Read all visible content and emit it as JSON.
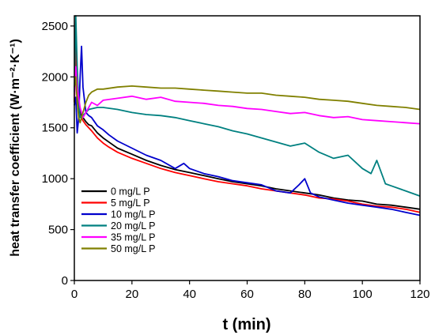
{
  "chart_data": {
    "type": "line",
    "xlabel": "t (min)",
    "ylabel": "heat transfer coefficient (W·m⁻²·K⁻¹)",
    "xlim": [
      0,
      120
    ],
    "ylim": [
      0,
      2600
    ],
    "xticks": [
      0,
      20,
      40,
      60,
      80,
      100,
      120
    ],
    "yticks": [
      0,
      500,
      1000,
      1500,
      2000,
      2500
    ],
    "grid": false,
    "legend_position": "lower-left",
    "series": [
      {
        "name": "0 mg/L P",
        "color": "#000000",
        "x": [
          0,
          0.5,
          1,
          1.5,
          2,
          3,
          4,
          5,
          6,
          8,
          10,
          12,
          15,
          20,
          25,
          30,
          35,
          40,
          45,
          50,
          55,
          60,
          65,
          70,
          75,
          80,
          85,
          90,
          95,
          100,
          105,
          110,
          115,
          120
        ],
        "y": [
          1750,
          2500,
          1950,
          1750,
          1650,
          1600,
          1560,
          1530,
          1520,
          1450,
          1400,
          1360,
          1300,
          1240,
          1180,
          1130,
          1090,
          1060,
          1030,
          1000,
          970,
          950,
          930,
          900,
          880,
          860,
          840,
          810,
          790,
          780,
          750,
          740,
          720,
          700
        ]
      },
      {
        "name": "5 mg/L P",
        "color": "#ff0000",
        "x": [
          0,
          0.5,
          1,
          1.5,
          2,
          3,
          4,
          5,
          6,
          8,
          10,
          12,
          15,
          20,
          25,
          30,
          35,
          40,
          45,
          50,
          55,
          60,
          65,
          70,
          75,
          80,
          85,
          90,
          95,
          100,
          105,
          110,
          115,
          120
        ],
        "y": [
          1750,
          2300,
          1850,
          1700,
          1620,
          1570,
          1530,
          1500,
          1470,
          1400,
          1350,
          1310,
          1260,
          1200,
          1150,
          1100,
          1060,
          1030,
          1000,
          970,
          950,
          930,
          900,
          880,
          860,
          840,
          810,
          800,
          780,
          750,
          730,
          720,
          700,
          670
        ]
      },
      {
        "name": "10 mg/L P",
        "color": "#0000cc",
        "x": [
          0,
          0.5,
          1,
          1.5,
          2,
          2.5,
          3,
          4,
          5,
          6,
          8,
          10,
          12,
          15,
          20,
          25,
          30,
          35,
          38,
          40,
          45,
          50,
          55,
          60,
          65,
          70,
          75,
          78,
          80,
          82,
          85,
          90,
          95,
          100,
          105,
          110,
          115,
          120
        ],
        "y": [
          1720,
          1800,
          1450,
          1600,
          2000,
          2300,
          1900,
          1650,
          1620,
          1600,
          1520,
          1480,
          1430,
          1370,
          1300,
          1230,
          1180,
          1100,
          1150,
          1100,
          1050,
          1020,
          980,
          960,
          940,
          880,
          860,
          940,
          1000,
          860,
          820,
          790,
          760,
          740,
          720,
          700,
          670,
          640
        ]
      },
      {
        "name": "20 mg/L P",
        "color": "#008080",
        "x": [
          0,
          0.5,
          1,
          1.5,
          2,
          3,
          4,
          5,
          8,
          10,
          15,
          20,
          25,
          30,
          35,
          40,
          45,
          50,
          55,
          60,
          65,
          70,
          75,
          80,
          85,
          90,
          95,
          100,
          103,
          105,
          108,
          110,
          115,
          120
        ],
        "y": [
          1850,
          2600,
          2100,
          1750,
          1600,
          1620,
          1650,
          1680,
          1700,
          1700,
          1680,
          1650,
          1630,
          1620,
          1600,
          1570,
          1540,
          1510,
          1470,
          1440,
          1400,
          1360,
          1320,
          1350,
          1260,
          1200,
          1230,
          1100,
          1050,
          1180,
          950,
          930,
          880,
          830
        ]
      },
      {
        "name": "35 mg/L P",
        "color": "#ff00ff",
        "x": [
          0,
          0.5,
          1,
          2,
          3,
          4,
          5,
          6,
          8,
          10,
          15,
          20,
          25,
          30,
          35,
          40,
          45,
          50,
          55,
          60,
          65,
          70,
          75,
          80,
          85,
          90,
          95,
          100,
          105,
          110,
          115,
          120
        ],
        "y": [
          1800,
          2100,
          1900,
          1700,
          1600,
          1650,
          1700,
          1750,
          1720,
          1770,
          1790,
          1810,
          1780,
          1800,
          1760,
          1750,
          1740,
          1720,
          1710,
          1690,
          1680,
          1660,
          1640,
          1650,
          1620,
          1600,
          1610,
          1580,
          1570,
          1560,
          1550,
          1540
        ]
      },
      {
        "name": "50 mg/L P",
        "color": "#808000",
        "x": [
          0,
          0.5,
          1,
          1.5,
          2,
          3,
          4,
          5,
          6,
          8,
          10,
          15,
          20,
          25,
          30,
          35,
          40,
          45,
          50,
          55,
          60,
          65,
          70,
          75,
          80,
          85,
          90,
          95,
          100,
          105,
          110,
          115,
          120
        ],
        "y": [
          1900,
          2000,
          1750,
          1600,
          1550,
          1650,
          1750,
          1820,
          1850,
          1880,
          1880,
          1900,
          1910,
          1900,
          1890,
          1890,
          1880,
          1870,
          1860,
          1850,
          1840,
          1840,
          1820,
          1810,
          1800,
          1780,
          1770,
          1760,
          1740,
          1720,
          1710,
          1700,
          1680
        ]
      }
    ]
  }
}
